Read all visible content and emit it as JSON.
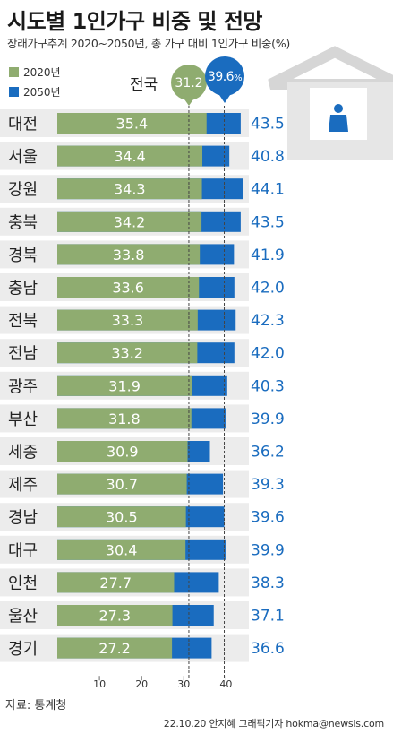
{
  "header": {
    "title": "시도별 1인가구 비중 및 전망",
    "subtitle": "장래가구추계 2020~2050년, 총 가구 대비 1인가구 비중(%)"
  },
  "legend": [
    {
      "label": "2020년",
      "color": "#8fac70"
    },
    {
      "label": "2050년",
      "color": "#1a6cbf"
    }
  ],
  "national": {
    "label": "전국",
    "v2020": "31.2",
    "v2050": "39.6",
    "pct": "%"
  },
  "chart_data": {
    "type": "bar",
    "categories": [
      "대전",
      "서울",
      "강원",
      "충북",
      "경북",
      "충남",
      "전북",
      "전남",
      "광주",
      "부산",
      "세종",
      "제주",
      "경남",
      "대구",
      "인천",
      "울산",
      "경기"
    ],
    "series": [
      {
        "name": "2020년",
        "values": [
          35.4,
          34.4,
          34.3,
          34.2,
          33.8,
          33.6,
          33.3,
          33.2,
          31.9,
          31.8,
          30.9,
          30.7,
          30.5,
          30.4,
          27.7,
          27.3,
          27.2
        ]
      },
      {
        "name": "2050년",
        "values": [
          43.5,
          40.8,
          44.1,
          43.5,
          41.9,
          42.0,
          42.3,
          42.0,
          40.3,
          39.9,
          36.2,
          39.3,
          39.6,
          39.9,
          38.3,
          37.1,
          36.6
        ]
      }
    ],
    "labels_2020": [
      "35.4",
      "34.4",
      "34.3",
      "34.2",
      "33.8",
      "33.6",
      "33.3",
      "33.2",
      "31.9",
      "31.8",
      "30.9",
      "30.7",
      "30.5",
      "30.4",
      "27.7",
      "27.3",
      "27.2"
    ],
    "labels_2050": [
      "43.5",
      "40.8",
      "44.1",
      "43.5",
      "41.9",
      "42.0",
      "42.3",
      "42.0",
      "40.3",
      "39.9",
      "36.2",
      "39.3",
      "39.6",
      "39.9",
      "38.3",
      "37.1",
      "36.6"
    ],
    "national_lines": [
      31.2,
      39.6
    ],
    "xticks": [
      "10",
      "20",
      "30",
      "40"
    ],
    "xlim": [
      0,
      44
    ],
    "colors": {
      "v2020": "#8fac70",
      "v2050": "#1a6cbf",
      "label2050": "#1a6cbf"
    }
  },
  "footer": {
    "source": "자료: 통계청",
    "credit": "22.10.20 안지혜 그래픽기자 hokma@newsis.com"
  }
}
